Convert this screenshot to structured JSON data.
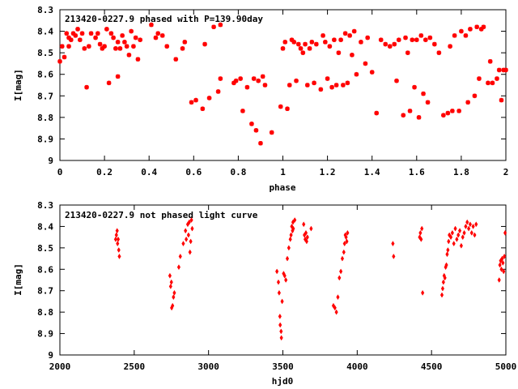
{
  "chart_data": [
    {
      "type": "scatter",
      "title": "213420-0227.9 phased with P=139.90day",
      "xlabel": "phase",
      "ylabel": "I[mag]",
      "xlim": [
        0,
        2
      ],
      "ylim": [
        8.3,
        9.0
      ],
      "y_inverted": true,
      "grid": false,
      "legend": "none",
      "marker_color": "#ff0000",
      "marker": "asterisk",
      "x_ticks": [
        "0",
        "0.2",
        "0.4",
        "0.6",
        "0.8",
        "1",
        "1.2",
        "1.4",
        "1.6",
        "1.8",
        "2"
      ],
      "y_ticks": [
        "8.3",
        "8.4",
        "8.5",
        "8.6",
        "8.7",
        "8.8",
        "8.9",
        "9"
      ],
      "points": [
        [
          0.0,
          8.54
        ],
        [
          0.01,
          8.47
        ],
        [
          0.02,
          8.52
        ],
        [
          0.03,
          8.41
        ],
        [
          0.04,
          8.47
        ],
        [
          0.04,
          8.43
        ],
        [
          0.05,
          8.44
        ],
        [
          0.06,
          8.41
        ],
        [
          0.07,
          8.42
        ],
        [
          0.08,
          8.39
        ],
        [
          0.09,
          8.44
        ],
        [
          0.1,
          8.41
        ],
        [
          0.11,
          8.48
        ],
        [
          0.12,
          8.66
        ],
        [
          0.13,
          8.47
        ],
        [
          0.14,
          8.41
        ],
        [
          0.16,
          8.43
        ],
        [
          0.17,
          8.41
        ],
        [
          0.18,
          8.46
        ],
        [
          0.19,
          8.48
        ],
        [
          0.2,
          8.47
        ],
        [
          0.21,
          8.39
        ],
        [
          0.22,
          8.64
        ],
        [
          0.23,
          8.41
        ],
        [
          0.24,
          8.43
        ],
        [
          0.25,
          8.48
        ],
        [
          0.26,
          8.45
        ],
        [
          0.26,
          8.61
        ],
        [
          0.27,
          8.48
        ],
        [
          0.28,
          8.42
        ],
        [
          0.29,
          8.45
        ],
        [
          0.3,
          8.47
        ],
        [
          0.31,
          8.51
        ],
        [
          0.32,
          8.4
        ],
        [
          0.33,
          8.47
        ],
        [
          0.34,
          8.43
        ],
        [
          0.35,
          8.53
        ],
        [
          0.36,
          8.44
        ],
        [
          0.41,
          8.37
        ],
        [
          0.43,
          8.43
        ],
        [
          0.44,
          8.41
        ],
        [
          0.46,
          8.42
        ],
        [
          0.48,
          8.47
        ],
        [
          0.52,
          8.53
        ],
        [
          0.55,
          8.48
        ],
        [
          0.56,
          8.45
        ],
        [
          0.59,
          8.73
        ],
        [
          0.61,
          8.72
        ],
        [
          0.64,
          8.76
        ],
        [
          0.65,
          8.46
        ],
        [
          0.67,
          8.71
        ],
        [
          0.69,
          8.38
        ],
        [
          0.71,
          8.68
        ],
        [
          0.72,
          8.37
        ],
        [
          0.72,
          8.62
        ],
        [
          0.78,
          8.64
        ],
        [
          0.79,
          8.63
        ],
        [
          0.81,
          8.62
        ],
        [
          0.82,
          8.77
        ],
        [
          0.84,
          8.66
        ],
        [
          0.86,
          8.83
        ],
        [
          0.87,
          8.62
        ],
        [
          0.88,
          8.86
        ],
        [
          0.89,
          8.63
        ],
        [
          0.9,
          8.92
        ],
        [
          0.91,
          8.61
        ],
        [
          0.92,
          8.65
        ],
        [
          0.95,
          8.87
        ],
        [
          0.99,
          8.75
        ],
        [
          1.0,
          8.48
        ],
        [
          1.01,
          8.45
        ],
        [
          1.02,
          8.76
        ],
        [
          1.03,
          8.65
        ],
        [
          1.04,
          8.44
        ],
        [
          1.05,
          8.45
        ],
        [
          1.06,
          8.63
        ],
        [
          1.07,
          8.46
        ],
        [
          1.08,
          8.48
        ],
        [
          1.09,
          8.5
        ],
        [
          1.1,
          8.46
        ],
        [
          1.11,
          8.65
        ],
        [
          1.12,
          8.48
        ],
        [
          1.13,
          8.45
        ],
        [
          1.14,
          8.64
        ],
        [
          1.15,
          8.46
        ],
        [
          1.17,
          8.67
        ],
        [
          1.18,
          8.42
        ],
        [
          1.19,
          8.45
        ],
        [
          1.2,
          8.62
        ],
        [
          1.21,
          8.47
        ],
        [
          1.22,
          8.66
        ],
        [
          1.23,
          8.44
        ],
        [
          1.24,
          8.65
        ],
        [
          1.25,
          8.5
        ],
        [
          1.26,
          8.44
        ],
        [
          1.27,
          8.65
        ],
        [
          1.28,
          8.41
        ],
        [
          1.29,
          8.64
        ],
        [
          1.3,
          8.42
        ],
        [
          1.31,
          8.51
        ],
        [
          1.32,
          8.4
        ],
        [
          1.33,
          8.6
        ],
        [
          1.35,
          8.45
        ],
        [
          1.37,
          8.55
        ],
        [
          1.38,
          8.43
        ],
        [
          1.4,
          8.59
        ],
        [
          1.42,
          8.78
        ],
        [
          1.44,
          8.44
        ],
        [
          1.46,
          8.46
        ],
        [
          1.48,
          8.47
        ],
        [
          1.5,
          8.46
        ],
        [
          1.51,
          8.63
        ],
        [
          1.52,
          8.44
        ],
        [
          1.54,
          8.79
        ],
        [
          1.55,
          8.43
        ],
        [
          1.56,
          8.5
        ],
        [
          1.57,
          8.77
        ],
        [
          1.58,
          8.44
        ],
        [
          1.59,
          8.66
        ],
        [
          1.6,
          8.44
        ],
        [
          1.61,
          8.8
        ],
        [
          1.62,
          8.42
        ],
        [
          1.63,
          8.69
        ],
        [
          1.64,
          8.44
        ],
        [
          1.65,
          8.73
        ],
        [
          1.66,
          8.43
        ],
        [
          1.68,
          8.46
        ],
        [
          1.7,
          8.5
        ],
        [
          1.72,
          8.79
        ],
        [
          1.74,
          8.78
        ],
        [
          1.75,
          8.47
        ],
        [
          1.76,
          8.77
        ],
        [
          1.77,
          8.42
        ],
        [
          1.79,
          8.77
        ],
        [
          1.8,
          8.4
        ],
        [
          1.82,
          8.42
        ],
        [
          1.83,
          8.73
        ],
        [
          1.84,
          8.39
        ],
        [
          1.86,
          8.7
        ],
        [
          1.87,
          8.38
        ],
        [
          1.88,
          8.62
        ],
        [
          1.89,
          8.39
        ],
        [
          1.9,
          8.38
        ],
        [
          1.92,
          8.64
        ],
        [
          1.93,
          8.54
        ],
        [
          1.94,
          8.64
        ],
        [
          1.96,
          8.62
        ],
        [
          1.97,
          8.58
        ],
        [
          1.98,
          8.72
        ],
        [
          1.99,
          8.58
        ],
        [
          2.0,
          8.58
        ]
      ]
    },
    {
      "type": "scatter",
      "title": "213420-0227.9 not phased light curve",
      "xlabel": "hjd0",
      "ylabel": "I[mag]",
      "xlim": [
        2000,
        5000
      ],
      "ylim": [
        8.3,
        9.0
      ],
      "y_inverted": true,
      "grid": false,
      "legend": "none",
      "marker_color": "#ff0000",
      "marker": "diamond",
      "x_ticks": [
        "2000",
        "2500",
        "3000",
        "3500",
        "4000",
        "4500",
        "5000"
      ],
      "y_ticks": [
        "8.3",
        "8.4",
        "8.5",
        "8.6",
        "8.7",
        "8.8",
        "8.9",
        "9"
      ],
      "points": [
        [
          2375,
          8.46
        ],
        [
          2380,
          8.44
        ],
        [
          2385,
          8.42
        ],
        [
          2388,
          8.48
        ],
        [
          2392,
          8.46
        ],
        [
          2396,
          8.51
        ],
        [
          2400,
          8.54
        ],
        [
          2740,
          8.63
        ],
        [
          2745,
          8.68
        ],
        [
          2750,
          8.66
        ],
        [
          2752,
          8.78
        ],
        [
          2758,
          8.77
        ],
        [
          2764,
          8.73
        ],
        [
          2770,
          8.71
        ],
        [
          2800,
          8.59
        ],
        [
          2810,
          8.54
        ],
        [
          2830,
          8.48
        ],
        [
          2845,
          8.42
        ],
        [
          2850,
          8.46
        ],
        [
          2860,
          8.39
        ],
        [
          2865,
          8.44
        ],
        [
          2870,
          8.38
        ],
        [
          2875,
          8.52
        ],
        [
          2880,
          8.47
        ],
        [
          2885,
          8.37
        ],
        [
          2890,
          8.41
        ],
        [
          3460,
          8.61
        ],
        [
          3470,
          8.66
        ],
        [
          3475,
          8.71
        ],
        [
          3480,
          8.82
        ],
        [
          3482,
          8.86
        ],
        [
          3488,
          8.89
        ],
        [
          3490,
          8.92
        ],
        [
          3495,
          8.75
        ],
        [
          3505,
          8.62
        ],
        [
          3512,
          8.63
        ],
        [
          3520,
          8.65
        ],
        [
          3530,
          8.55
        ],
        [
          3540,
          8.5
        ],
        [
          3550,
          8.46
        ],
        [
          3555,
          8.44
        ],
        [
          3560,
          8.4
        ],
        [
          3565,
          8.42
        ],
        [
          3568,
          8.38
        ],
        [
          3570,
          8.41
        ],
        [
          3580,
          8.37
        ],
        [
          3640,
          8.39
        ],
        [
          3645,
          8.44
        ],
        [
          3650,
          8.46
        ],
        [
          3655,
          8.43
        ],
        [
          3660,
          8.47
        ],
        [
          3665,
          8.45
        ],
        [
          3690,
          8.41
        ],
        [
          3840,
          8.77
        ],
        [
          3850,
          8.78
        ],
        [
          3860,
          8.8
        ],
        [
          3870,
          8.73
        ],
        [
          3880,
          8.64
        ],
        [
          3890,
          8.61
        ],
        [
          3900,
          8.55
        ],
        [
          3910,
          8.52
        ],
        [
          3915,
          8.48
        ],
        [
          3920,
          8.44
        ],
        [
          3925,
          8.45
        ],
        [
          3930,
          8.47
        ],
        [
          3935,
          8.43
        ],
        [
          4240,
          8.48
        ],
        [
          4245,
          8.54
        ],
        [
          4420,
          8.45
        ],
        [
          4425,
          8.43
        ],
        [
          4430,
          8.46
        ],
        [
          4435,
          8.41
        ],
        [
          4440,
          8.71
        ],
        [
          4570,
          8.72
        ],
        [
          4575,
          8.69
        ],
        [
          4580,
          8.66
        ],
        [
          4585,
          8.63
        ],
        [
          4590,
          8.64
        ],
        [
          4595,
          8.59
        ],
        [
          4600,
          8.58
        ],
        [
          4605,
          8.53
        ],
        [
          4610,
          8.51
        ],
        [
          4615,
          8.47
        ],
        [
          4620,
          8.44
        ],
        [
          4630,
          8.45
        ],
        [
          4640,
          8.43
        ],
        [
          4650,
          8.48
        ],
        [
          4660,
          8.41
        ],
        [
          4670,
          8.46
        ],
        [
          4680,
          8.44
        ],
        [
          4690,
          8.42
        ],
        [
          4700,
          8.49
        ],
        [
          4710,
          8.45
        ],
        [
          4720,
          8.43
        ],
        [
          4730,
          8.4
        ],
        [
          4740,
          8.38
        ],
        [
          4750,
          8.41
        ],
        [
          4760,
          8.39
        ],
        [
          4770,
          8.43
        ],
        [
          4780,
          8.4
        ],
        [
          4790,
          8.44
        ],
        [
          4800,
          8.39
        ],
        [
          4955,
          8.65
        ],
        [
          4960,
          8.58
        ],
        [
          4965,
          8.56
        ],
        [
          4970,
          8.6
        ],
        [
          4975,
          8.55
        ],
        [
          4980,
          8.57
        ],
        [
          4985,
          8.61
        ],
        [
          4990,
          8.54
        ],
        [
          4995,
          8.43
        ]
      ]
    }
  ]
}
